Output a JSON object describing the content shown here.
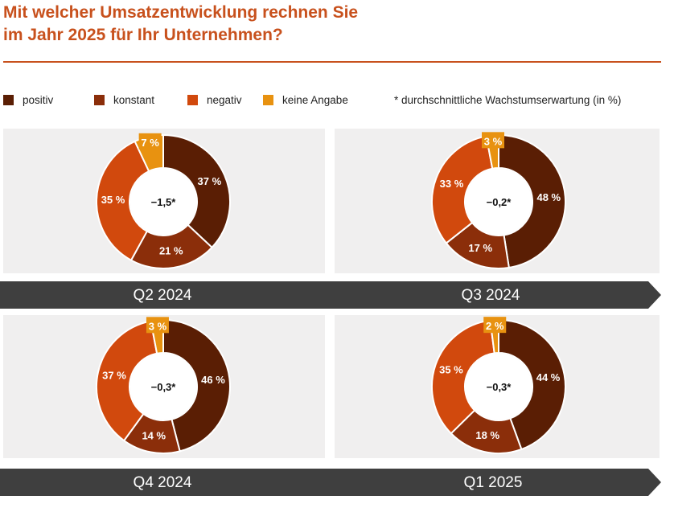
{
  "title": {
    "line1": "Mit welcher Umsatzentwicklung rechnen Sie",
    "line2": "im Jahr 2025 für Ihr Unternehmen?"
  },
  "legend": {
    "items": [
      {
        "label": "positiv",
        "color": "#5a1e04"
      },
      {
        "label": "konstant",
        "color": "#8b2e0a"
      },
      {
        "label": "negativ",
        "color": "#d1490d"
      },
      {
        "label": "keine Angabe",
        "color": "#e89210"
      }
    ],
    "note": "* durchschnittliche Wachstumserwartung (in %)"
  },
  "chart_data": [
    {
      "type": "pie",
      "period": "Q2 2024",
      "center_label": "−1,5*",
      "categories": [
        "positiv",
        "konstant",
        "negativ",
        "keine Angabe"
      ],
      "values": [
        37,
        21,
        35,
        7
      ],
      "value_labels": [
        "37 %",
        "21 %",
        "35 %",
        "7 %"
      ]
    },
    {
      "type": "pie",
      "period": "Q3 2024",
      "center_label": "−0,2*",
      "categories": [
        "positiv",
        "konstant",
        "negativ",
        "keine Angabe"
      ],
      "values": [
        48,
        17,
        33,
        3
      ],
      "value_labels": [
        "48 %",
        "17 %",
        "33 %",
        "3 %"
      ]
    },
    {
      "type": "pie",
      "period": "Q4 2024",
      "center_label": "−0,3*",
      "categories": [
        "positiv",
        "konstant",
        "negativ",
        "keine Angabe"
      ],
      "values": [
        46,
        14,
        37,
        3
      ],
      "value_labels": [
        "46 %",
        "14 %",
        "37 %",
        "3 %"
      ]
    },
    {
      "type": "pie",
      "period": "Q1 2025",
      "center_label": "−0,3*",
      "categories": [
        "positiv",
        "konstant",
        "negativ",
        "keine Angabe"
      ],
      "values": [
        44,
        18,
        35,
        2
      ],
      "value_labels": [
        "44 %",
        "18 %",
        "35 %",
        "2 %"
      ]
    }
  ]
}
